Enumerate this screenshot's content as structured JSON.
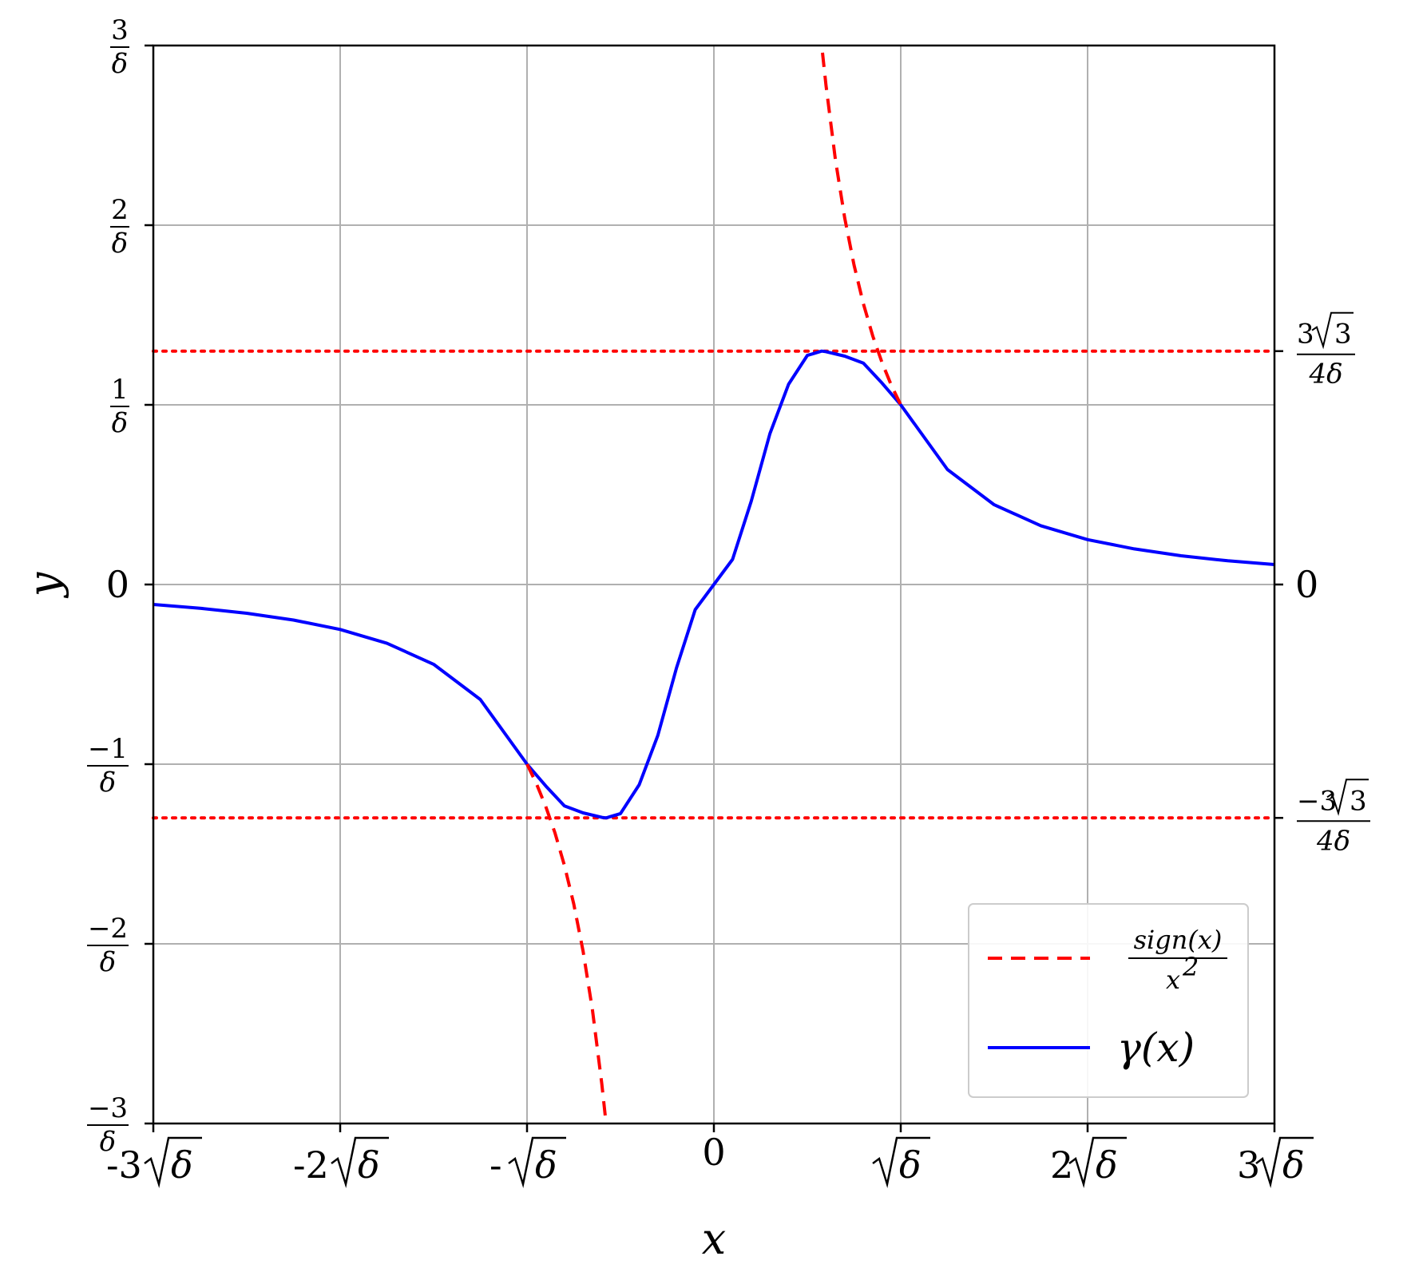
{
  "chart_data": {
    "type": "line",
    "xlabel": "x",
    "ylabel": "y",
    "xlim": [
      -3,
      3
    ],
    "ylim": [
      -3,
      3
    ],
    "x_unit": "√δ",
    "y_unit": "1/δ",
    "grid": true,
    "legend_position": "lower-right",
    "x_ticks": [
      {
        "value": -3,
        "coef": "-3",
        "root": "δ"
      },
      {
        "value": -2,
        "coef": "-2",
        "root": "δ"
      },
      {
        "value": -1,
        "coef": "-",
        "root": "δ"
      },
      {
        "value": 0,
        "coef": "0",
        "root": ""
      },
      {
        "value": 1,
        "coef": "",
        "root": "δ"
      },
      {
        "value": 2,
        "coef": "2",
        "root": "δ"
      },
      {
        "value": 3,
        "coef": "3",
        "root": "δ"
      }
    ],
    "y_ticks_left": [
      {
        "value": 3,
        "num": "3",
        "den": "δ"
      },
      {
        "value": 2,
        "num": "2",
        "den": "δ"
      },
      {
        "value": 1,
        "num": "1",
        "den": "δ"
      },
      {
        "value": 0,
        "text": "0"
      },
      {
        "value": -1,
        "num": "−1",
        "den": "δ"
      },
      {
        "value": -2,
        "num": "−2",
        "den": "δ"
      },
      {
        "value": -3,
        "num": "−3",
        "den": "δ"
      }
    ],
    "y_ticks_right": [
      {
        "value": 1.299,
        "num_pre": "3",
        "num_root": "3",
        "den": "4δ"
      },
      {
        "value": 0,
        "text": "0"
      },
      {
        "value": -1.299,
        "num_pre": "−3",
        "num_root": "3",
        "den": "4δ"
      }
    ],
    "series": [
      {
        "id": "gamma",
        "style": "solid",
        "color": "#0000ff",
        "x": [
          -3.0,
          -2.75,
          -2.5,
          -2.25,
          -2.0,
          -1.75,
          -1.5,
          -1.25,
          -1.0,
          -0.9,
          -0.8,
          -0.7,
          -0.6,
          -0.577,
          -0.5,
          -0.4,
          -0.3,
          -0.2,
          -0.1,
          0.0,
          0.1,
          0.2,
          0.3,
          0.4,
          0.5,
          0.577,
          0.6,
          0.7,
          0.8,
          0.9,
          1.0,
          1.25,
          1.5,
          1.75,
          2.0,
          2.25,
          2.5,
          2.75,
          3.0
        ],
        "y": [
          -0.111,
          -0.132,
          -0.16,
          -0.198,
          -0.25,
          -0.327,
          -0.444,
          -0.64,
          -1.0,
          -1.121,
          -1.232,
          -1.271,
          -1.296,
          -1.299,
          -1.275,
          -1.115,
          -0.84,
          -0.464,
          -0.14,
          0.0,
          0.14,
          0.464,
          0.84,
          1.115,
          1.275,
          1.299,
          1.296,
          1.271,
          1.232,
          1.121,
          1.0,
          0.64,
          0.444,
          0.327,
          0.25,
          0.198,
          0.16,
          0.132,
          0.111
        ]
      },
      {
        "id": "inverse-square-negative",
        "style": "dashed",
        "color": "#ff0000",
        "x": [
          -1.0,
          -0.95,
          -0.9,
          -0.85,
          -0.8,
          -0.75,
          -0.7,
          -0.65,
          -0.6,
          -0.577
        ],
        "y": [
          -1.0,
          -1.108,
          -1.235,
          -1.384,
          -1.563,
          -1.778,
          -2.041,
          -2.367,
          -2.778,
          -3.0
        ]
      },
      {
        "id": "inverse-square-positive",
        "style": "dashed",
        "color": "#ff0000",
        "x": [
          0.581,
          0.6,
          0.65,
          0.7,
          0.75,
          0.8,
          0.85,
          0.9,
          0.95,
          1.0
        ],
        "y": [
          2.96,
          2.778,
          2.367,
          2.041,
          1.778,
          1.563,
          1.384,
          1.235,
          1.108,
          1.0
        ]
      }
    ],
    "hlines": [
      {
        "y": 1.299,
        "style": "dotted",
        "color": "#ff0000"
      },
      {
        "y": -1.299,
        "style": "dotted",
        "color": "#ff0000"
      }
    ],
    "legend": [
      {
        "series": "inverse-square-negative",
        "num": "sign(x)",
        "den": "x",
        "den_sup": "2"
      },
      {
        "series": "gamma",
        "label": "γ(x)"
      }
    ]
  }
}
